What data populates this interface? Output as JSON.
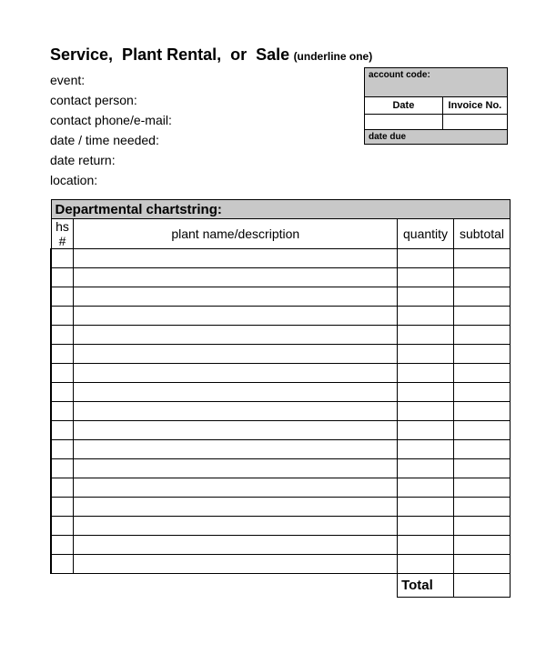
{
  "title": {
    "main": "Service,  Plant Rental,  or  Sale",
    "hint": "(underline one)"
  },
  "fields": {
    "event": "event:",
    "contact_person": "contact person:",
    "contact_phone_email": "contact phone/e-mail:",
    "date_time_needed": "date / time needed:",
    "date_return": "date return:",
    "location": "location:"
  },
  "account_box": {
    "account_code": "account code:",
    "date": "Date",
    "invoice_no": "Invoice No.",
    "date_due": "date due"
  },
  "table": {
    "chartstring": "Departmental chartstring:",
    "col_hs": "hs #",
    "col_desc": "plant name/description",
    "col_qty": "quantity",
    "col_sub": "subtotal",
    "row_count": 17,
    "total": "Total"
  },
  "style": {
    "header_bg": "#c8c8c8",
    "border_color": "#000000",
    "bg": "#ffffff"
  }
}
